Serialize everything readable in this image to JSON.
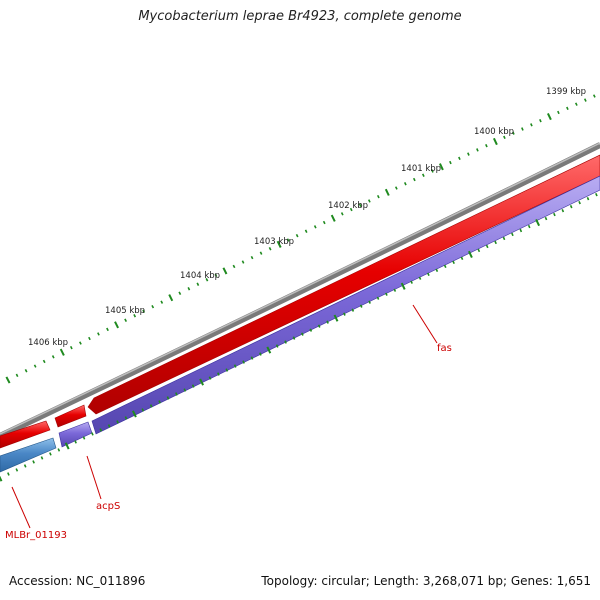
{
  "title": "Mycobacterium leprae Br4923, complete genome",
  "footer": {
    "accession": "Accession: NC_011896",
    "summary": "Topology: circular; Length: 3,268,071 bp; Genes: 1,651"
  },
  "colors": {
    "backbone": "#7a7a7a",
    "forward_cds": "#e60000",
    "reverse_cds": "#7b68d8",
    "other_gene": "#4a87c6",
    "tick": "#1f8a1f",
    "label": "#cc0000"
  },
  "ticks": {
    "labels": [
      "1399 kbp",
      "1400 kbp",
      "1401 kbp",
      "1402 kbp",
      "1403 kbp",
      "1404 kbp",
      "1405 kbp",
      "1406 kbp"
    ]
  },
  "genes": [
    {
      "name": "fas"
    },
    {
      "name": "acpS"
    },
    {
      "name": "MLBr_01193"
    }
  ]
}
